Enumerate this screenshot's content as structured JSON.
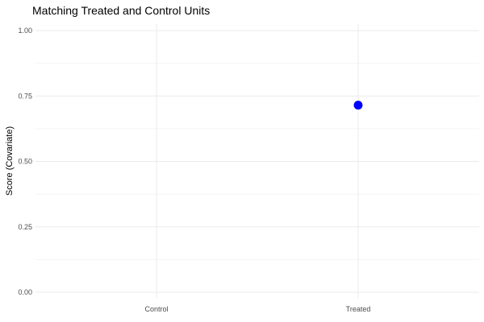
{
  "chart_data": {
    "type": "scatter",
    "title": "Matching Treated and Control Units",
    "xlabel": "",
    "ylabel": "Score (Covariate)",
    "categories": [
      "Control",
      "Treated"
    ],
    "ylim": [
      0,
      1
    ],
    "yticks": [
      0.0,
      0.25,
      0.5,
      0.75,
      1.0
    ],
    "ytick_labels": [
      "0.00",
      "0.25",
      "0.50",
      "0.75",
      "1.00"
    ],
    "grid": true,
    "legend": "none",
    "series": [
      {
        "points": [
          {
            "x": "Treated",
            "y": 0.715
          }
        ],
        "color": "#0000ff"
      }
    ]
  }
}
